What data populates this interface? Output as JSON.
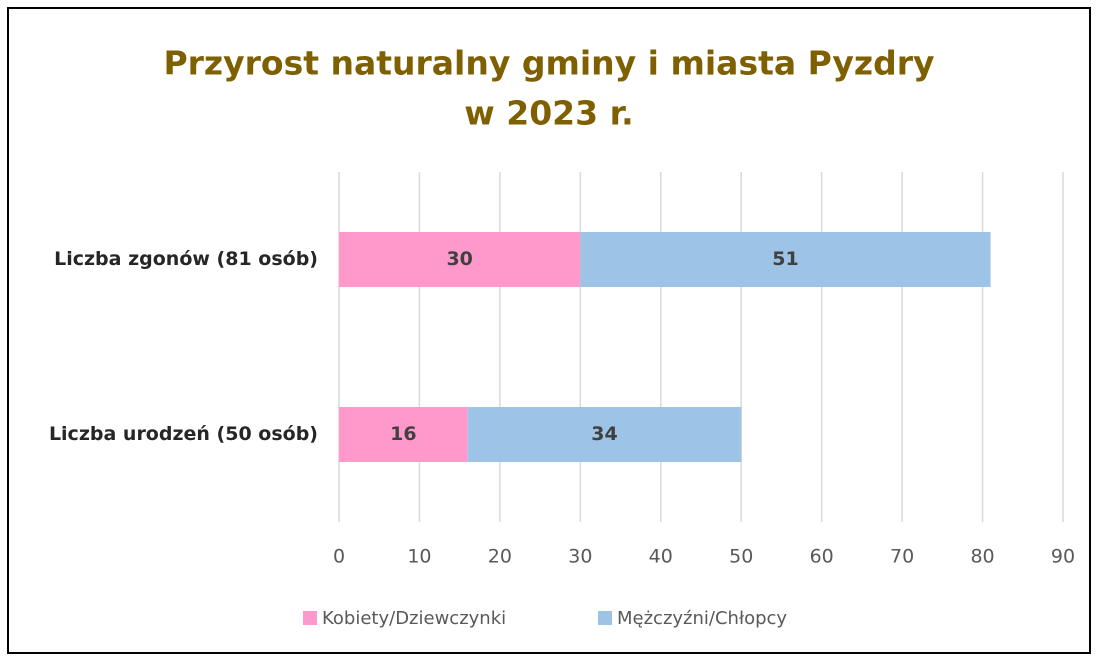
{
  "chart_data": {
    "type": "bar",
    "orientation": "horizontal",
    "stacked": true,
    "title": [
      "Przyrost naturalny gminy i miasta Pyzdry",
      "w 2023 r."
    ],
    "categories": [
      "Liczba zgonów (81 osób)",
      "Liczba urodzeń (50 osób)"
    ],
    "series": [
      {
        "name": "Kobiety/Dziewczynki",
        "color": "#ff99cc",
        "values": [
          30,
          16
        ]
      },
      {
        "name": "Mężczyźni/Chłopcy",
        "color": "#9dc3e6",
        "values": [
          51,
          34
        ]
      }
    ],
    "xlim": [
      0,
      90
    ],
    "xticks": [
      0,
      10,
      20,
      30,
      40,
      50,
      60,
      70,
      80,
      90
    ],
    "grid": true,
    "legend": "bottom"
  }
}
